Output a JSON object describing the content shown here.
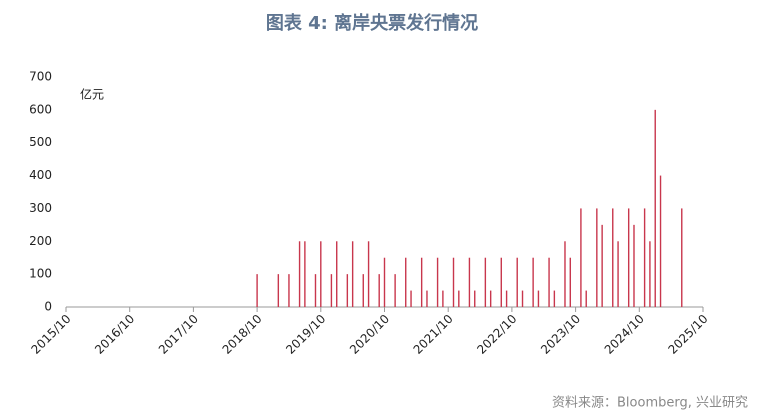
{
  "chart_data": {
    "type": "bar",
    "title": "图表 4:  离岸央票发行情况",
    "y_label": "亿元",
    "source": "资料来源：Bloomberg, 兴业研究",
    "color": "#c8364c",
    "x": [
      "2018/10",
      "2019/02",
      "2019/04",
      "2019/06",
      "2019/07",
      "2019/09",
      "2019/10",
      "2019/12",
      "2020/01",
      "2020/03",
      "2020/04",
      "2020/06",
      "2020/07",
      "2020/09",
      "2020/10",
      "2020/12",
      "2021/02",
      "2021/03",
      "2021/05",
      "2021/06",
      "2021/08",
      "2021/09",
      "2021/11",
      "2021/12",
      "2022/02",
      "2022/03",
      "2022/05",
      "2022/06",
      "2022/08",
      "2022/09",
      "2022/11",
      "2022/12",
      "2023/02",
      "2023/03",
      "2023/05",
      "2023/06",
      "2023/08",
      "2023/09",
      "2023/11",
      "2023/12",
      "2024/02",
      "2024/03",
      "2024/05",
      "2024/06",
      "2024/08",
      "2024/09",
      "2024/11",
      "2024/12",
      "2025/01",
      "2025/02",
      "2025/06"
    ],
    "values": [
      100,
      100,
      100,
      200,
      200,
      100,
      200,
      100,
      200,
      100,
      200,
      100,
      200,
      100,
      150,
      100,
      150,
      50,
      150,
      50,
      150,
      50,
      150,
      50,
      150,
      50,
      150,
      50,
      150,
      50,
      150,
      50,
      150,
      50,
      150,
      50,
      200,
      150,
      300,
      50,
      300,
      250,
      300,
      200,
      300,
      250,
      300,
      200,
      600,
      400,
      300
    ],
    "xlim": [
      "2015/10",
      "2025/10"
    ],
    "xticks": [
      "2015/10",
      "2016/10",
      "2017/10",
      "2018/10",
      "2019/10",
      "2020/10",
      "2021/10",
      "2022/10",
      "2023/10",
      "2024/10",
      "2025/10"
    ],
    "ylim": [
      0,
      700
    ],
    "yticks": [
      0,
      100,
      200,
      300,
      400,
      500,
      600,
      700
    ],
    "grid": false
  }
}
